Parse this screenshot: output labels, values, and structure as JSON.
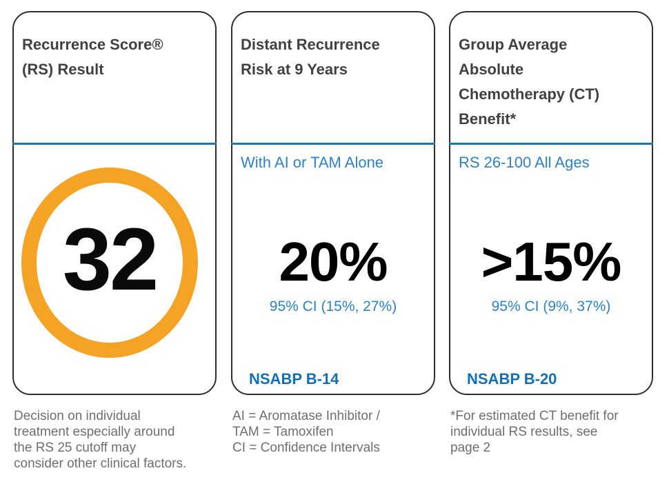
{
  "colors": {
    "divider_blue": "#1777C0",
    "label_blue": "#2A82C8",
    "study_blue": "#0E70B8",
    "ring_orange": "#F5A324",
    "title_gray": "#414042",
    "footnote_gray": "#6D6E71",
    "value_black": "#000000",
    "card_border": "#2d2d2d"
  },
  "cards": [
    {
      "title": "Recurrence Score®\n(RS) Result",
      "score": "32",
      "footnote": "Decision on individual\ntreatment especially around\nthe RS 25 cutoff may\nconsider other clinical factors."
    },
    {
      "title": "Distant Recurrence\nRisk at 9 Years",
      "subtitle": "With AI or TAM Alone",
      "value": "20%",
      "ci": "95% CI (15%, 27%)",
      "study": "NSABP B-14",
      "footnote": "AI = Aromatase Inhibitor /\nTAM = Tamoxifen\nCI = Confidence Intervals"
    },
    {
      "title": "Group Average\nAbsolute\nChemotherapy (CT)\nBenefit*",
      "subtitle": "RS 26-100 All Ages",
      "value": ">15%",
      "ci": "95% CI (9%, 37%)",
      "study": "NSABP B-20",
      "footnote": "*For estimated CT benefit for\nindividual RS results, see\npage 2"
    }
  ]
}
